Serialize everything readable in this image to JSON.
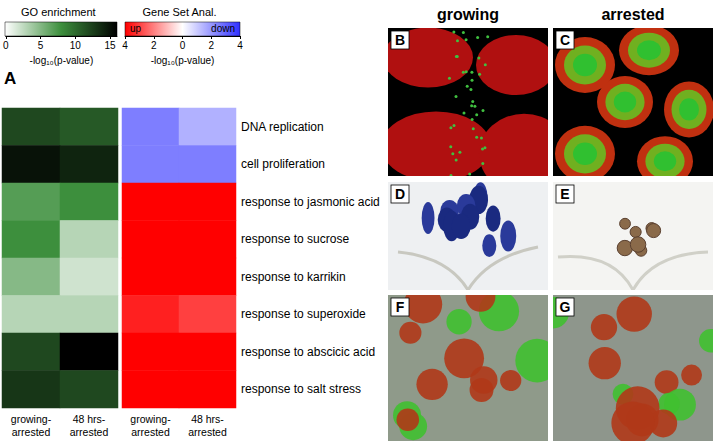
{
  "chart_data": [
    {
      "type": "heatmap",
      "title": "GO enrichment",
      "rows": [
        "DNA replication",
        "cell proliferation",
        "response to jasmonic acid",
        "response to sucrose",
        "response to karrikin",
        "response to superoxide",
        "response to abscicic acid",
        "response to salt stress"
      ],
      "categories": [
        "growing-\narrested",
        "48 hrs-\narrested"
      ],
      "values": [
        [
          12,
          11
        ],
        [
          15,
          14
        ],
        [
          7,
          8
        ],
        [
          8,
          3
        ],
        [
          5,
          2
        ],
        [
          3,
          3
        ],
        [
          12,
          16
        ],
        [
          13,
          12
        ]
      ],
      "colorbar": {
        "range": [
          0,
          16
        ],
        "ticks": [
          0,
          5,
          10,
          15
        ],
        "label": "-log₁₀(p-value)"
      }
    },
    {
      "type": "heatmap",
      "title": "Gene Set Anal.",
      "rows": [
        "DNA replication",
        "cell proliferation",
        "response to jasmonic acid",
        "response to sucrose",
        "response to karrikin",
        "response to superoxide",
        "response to abscicic acid",
        "response to salt stress"
      ],
      "categories": [
        "growing-\narrested",
        "48 hrs-\narrested"
      ],
      "values": [
        [
          -2.5,
          -1.5
        ],
        [
          -2.5,
          -2.5
        ],
        [
          4,
          4
        ],
        [
          4,
          4
        ],
        [
          4,
          4
        ],
        [
          3.5,
          3
        ],
        [
          4,
          4
        ],
        [
          4,
          4
        ]
      ],
      "colorbar": {
        "range": [
          -4,
          4
        ],
        "ticks": [
          4,
          2,
          0,
          {
            "value": -2,
            "label": "2"
          },
          {
            "value": -4,
            "label": "4"
          }
        ],
        "label": "-log₁₀(p-value)",
        "end_labels": [
          "up",
          "down"
        ]
      }
    }
  ],
  "figure": {
    "panel_label": "A",
    "column_headers": [
      "growing",
      "arrested"
    ],
    "panels": [
      "B",
      "C",
      "D",
      "E",
      "F",
      "G"
    ]
  }
}
